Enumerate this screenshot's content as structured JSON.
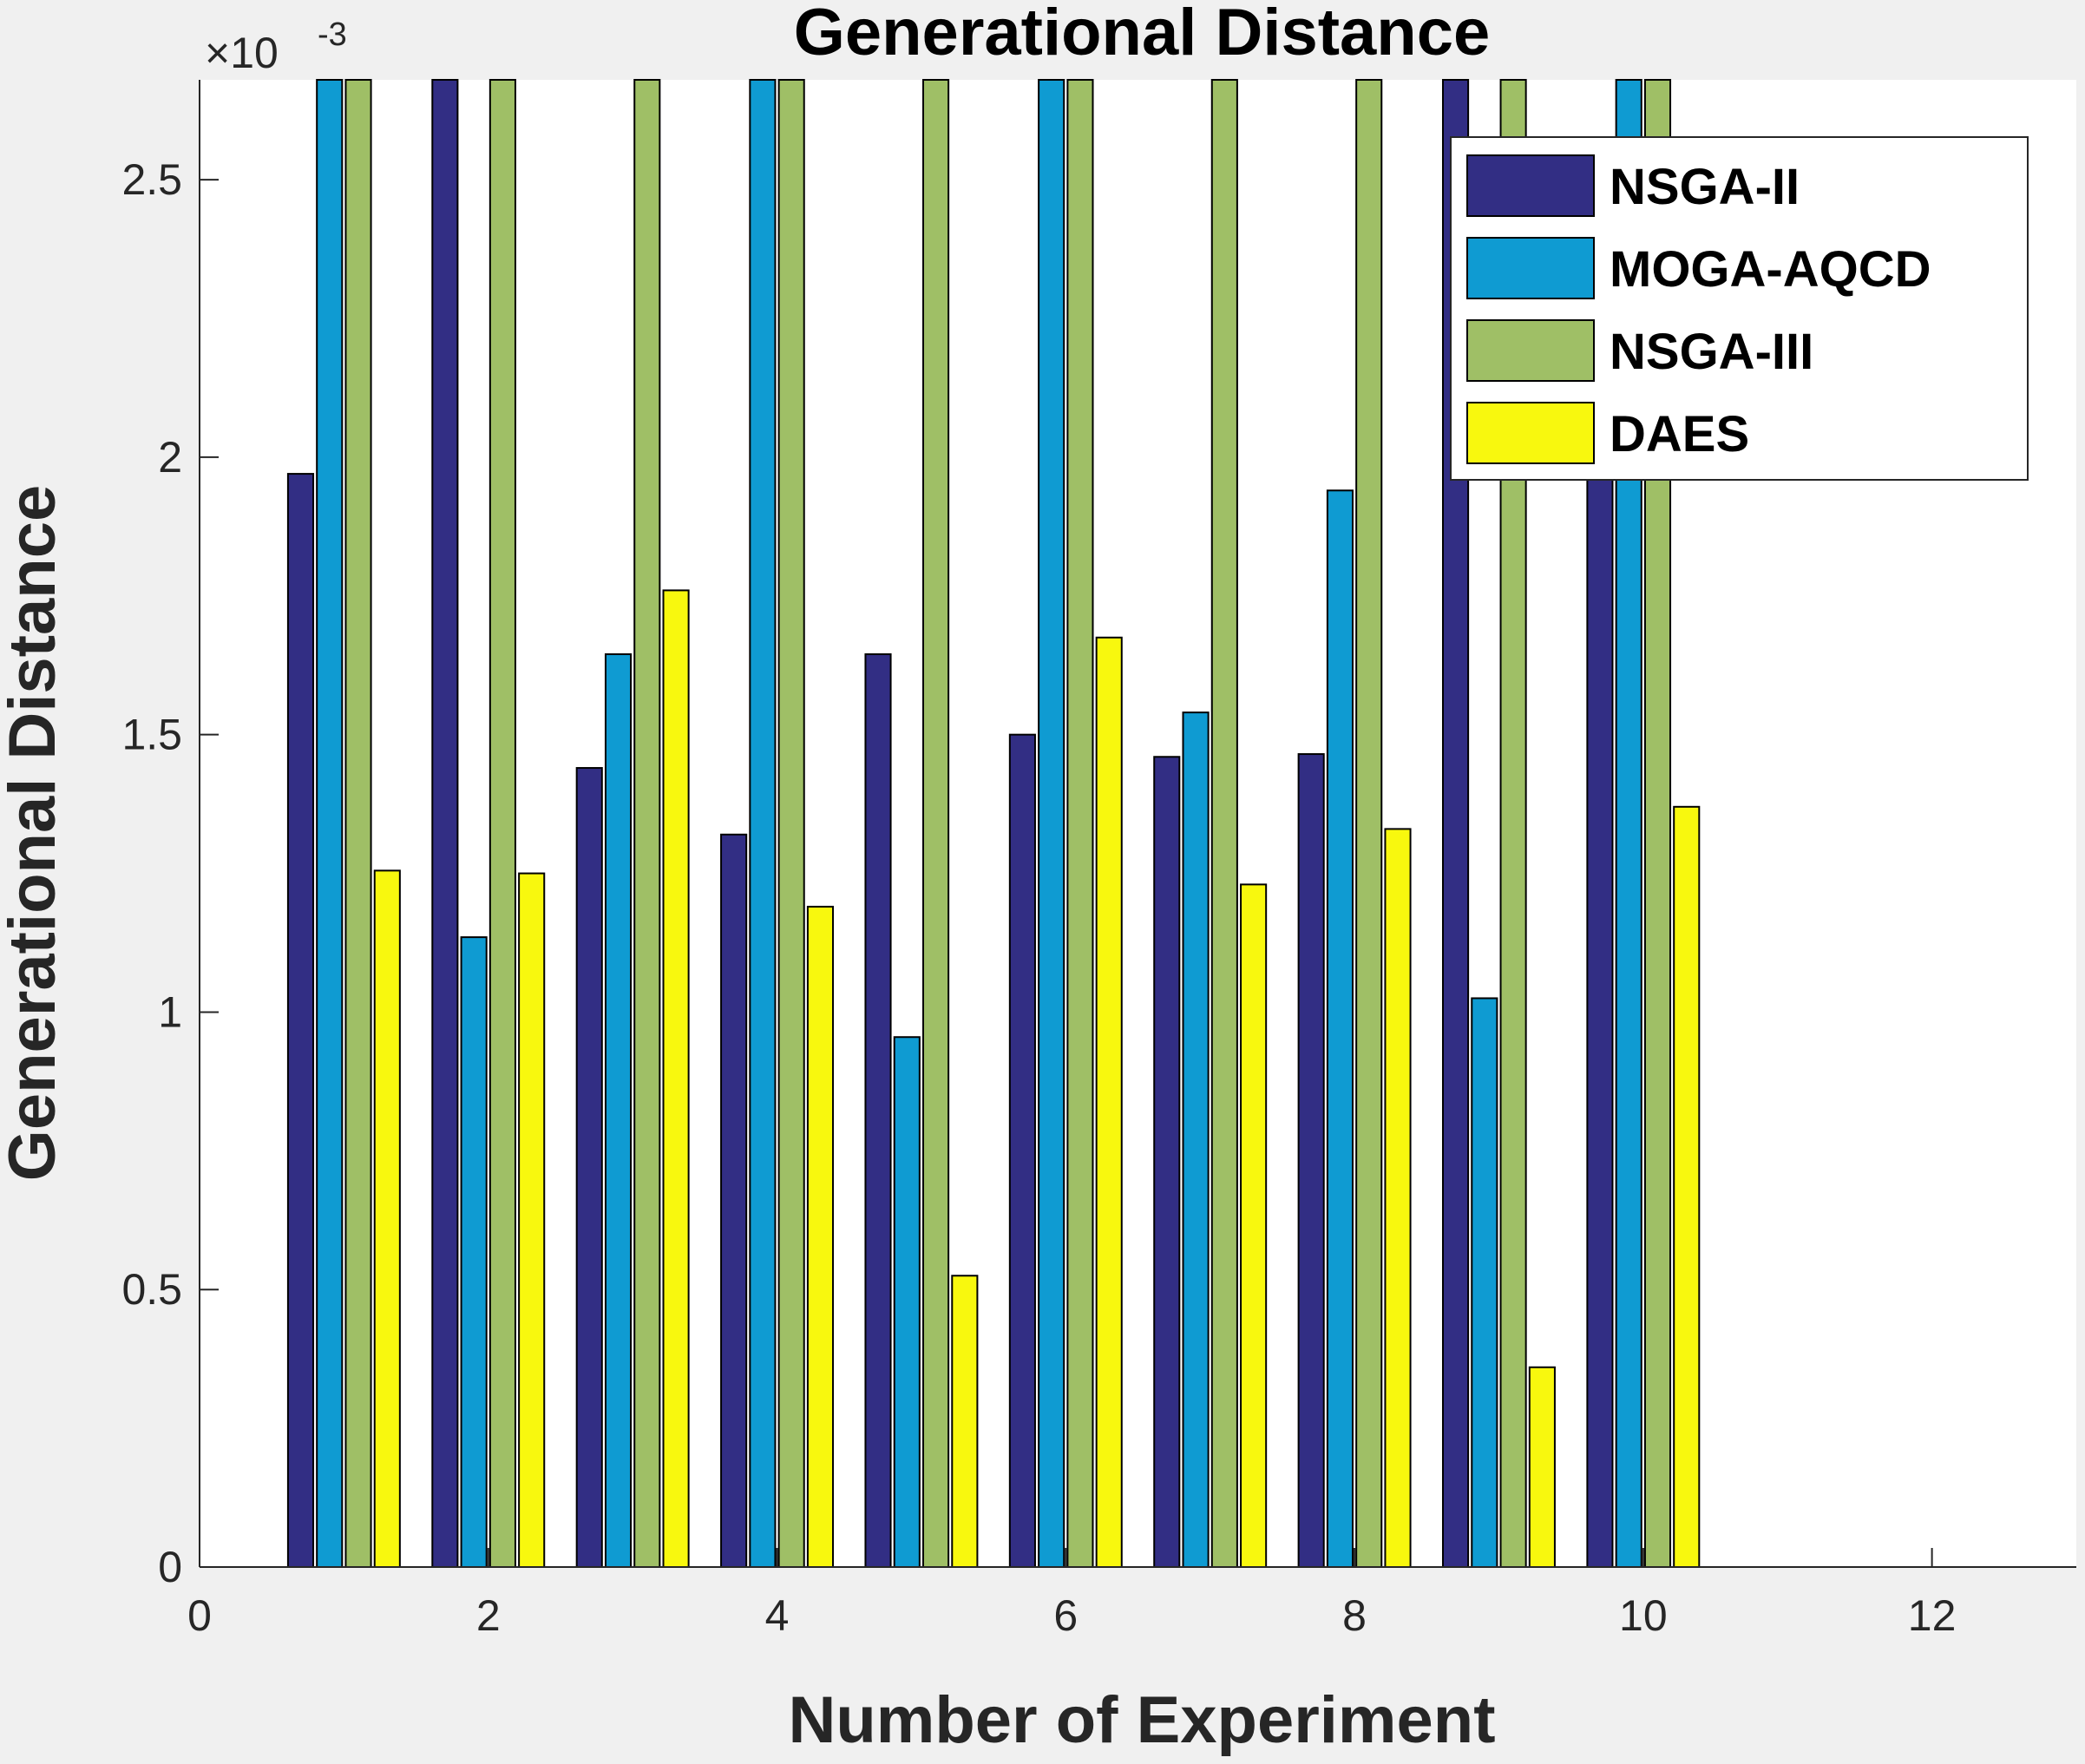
{
  "chart_data": {
    "type": "bar",
    "title": "Generational Distance",
    "xlabel": "Number of Experiment",
    "ylabel": "Generational Distance",
    "y_exponent_base": "×10",
    "y_exponent_power": "-3",
    "xlim": [
      0,
      13
    ],
    "ylim": [
      0,
      2.68
    ],
    "xticks": [
      "0",
      "2",
      "4",
      "6",
      "8",
      "10",
      "12"
    ],
    "yticks": [
      "0",
      "0.5",
      "1",
      "1.5",
      "2",
      "2.5"
    ],
    "legend_position": "top-right",
    "grid": false,
    "x": [
      1,
      2,
      3,
      4,
      5,
      6,
      7,
      8,
      9,
      10
    ],
    "series": [
      {
        "name": "NSGA-II",
        "color": "#322e84",
        "values": [
          1.97,
          2.8,
          1.44,
          1.32,
          1.645,
          1.5,
          1.46,
          1.465,
          2.8,
          2.0
        ]
      },
      {
        "name": "MOGA-AQCD",
        "color": "#0f9bd2",
        "values": [
          2.8,
          1.135,
          1.645,
          2.8,
          0.955,
          2.8,
          1.54,
          1.94,
          1.025,
          2.8
        ]
      },
      {
        "name": "NSGA-III",
        "color": "#9fbf66",
        "values": [
          2.8,
          2.8,
          2.8,
          2.8,
          2.8,
          2.8,
          2.8,
          2.8,
          2.8,
          2.8
        ]
      },
      {
        "name": "DAES",
        "color": "#f8f80e",
        "values": [
          1.255,
          1.25,
          1.76,
          1.19,
          0.525,
          1.675,
          1.23,
          1.33,
          0.36,
          1.37
        ]
      }
    ]
  }
}
